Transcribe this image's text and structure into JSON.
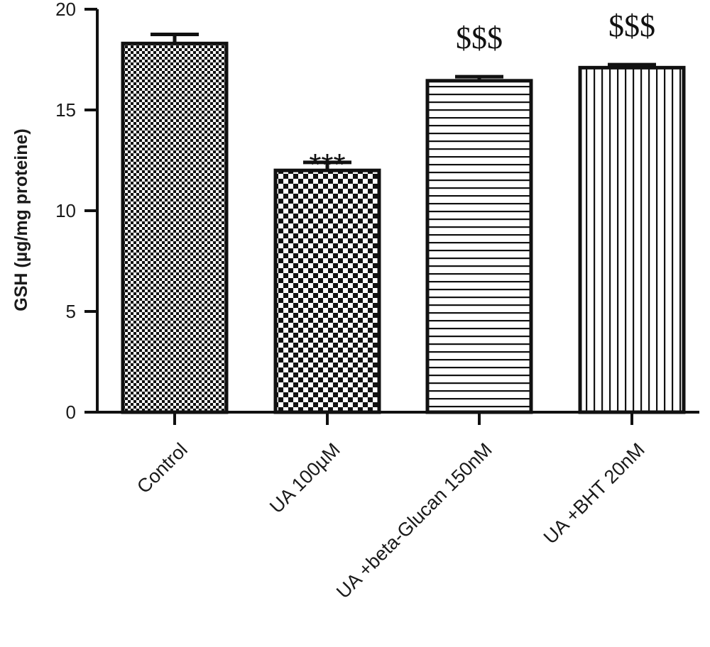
{
  "chart_data": {
    "type": "bar",
    "title": "",
    "xlabel": "",
    "ylabel": "GSH (µg/mg proteine)",
    "ylim": [
      0,
      20
    ],
    "yticks": [
      0,
      5,
      10,
      15,
      20
    ],
    "categories": [
      "Control",
      "UA 100µM",
      "UA +beta-Glucan 150nM",
      "UA +BHT 20nM"
    ],
    "values": [
      18.3,
      12.0,
      16.45,
      17.1
    ],
    "errors": [
      0.45,
      0.4,
      0.2,
      0.15
    ],
    "annotations": [
      "",
      "***",
      "$$$",
      "$$$"
    ],
    "patterns": [
      "fine-checker",
      "checker",
      "horizontal-lines",
      "vertical-lines"
    ],
    "grid": false,
    "legend": "none",
    "colors": {
      "ink": "#111111",
      "background": "#ffffff"
    }
  }
}
